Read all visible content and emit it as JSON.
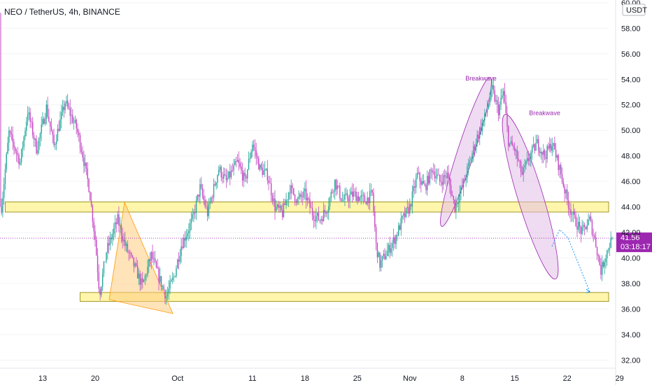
{
  "header": {
    "title": "NEO / TetherUS, 4h, BINANCE"
  },
  "chart_data": {
    "type": "candlestick",
    "title": "NEO / TetherUS, 4h, BINANCE",
    "yaxis": {
      "unit": "USDT",
      "ylim": [
        31.3,
        60.2
      ],
      "ticks": [
        "60.00",
        "58.00",
        "56.00",
        "54.00",
        "52.00",
        "50.00",
        "48.00",
        "46.00",
        "44.00",
        "42.00",
        "40.00",
        "38.00",
        "36.00",
        "34.00",
        "32.00"
      ]
    },
    "xaxis": {
      "ticks": [
        {
          "label": "13",
          "day": 13
        },
        {
          "label": "20",
          "day": 20
        },
        {
          "label": "Oct",
          "day": 31
        },
        {
          "label": "11",
          "day": 41
        },
        {
          "label": "18",
          "day": 48
        },
        {
          "label": "25",
          "day": 55
        },
        {
          "label": "Nov",
          "day": 62
        },
        {
          "label": "8",
          "day": 69
        },
        {
          "label": "15",
          "day": 76
        },
        {
          "label": "22",
          "day": 83
        },
        {
          "label": "29",
          "day": 90
        }
      ]
    },
    "current_price": {
      "value": 41.56,
      "label": "41.56",
      "countdown": "03:18:17"
    },
    "support_zones": [
      {
        "low": 43.6,
        "high": 44.4,
        "start_day": 8,
        "end_day": 91
      },
      {
        "low": 36.6,
        "high": 37.3,
        "start_day": 18,
        "end_day": 91
      }
    ],
    "path_points": [
      {
        "day": 7.5,
        "price": 44.0
      },
      {
        "day": 8.5,
        "price": 49.8
      },
      {
        "day": 10.0,
        "price": 47.5
      },
      {
        "day": 11.0,
        "price": 51.5
      },
      {
        "day": 12.2,
        "price": 48.5
      },
      {
        "day": 13.5,
        "price": 51.8
      },
      {
        "day": 14.5,
        "price": 48.8
      },
      {
        "day": 16.0,
        "price": 52.2
      },
      {
        "day": 17.5,
        "price": 50.2
      },
      {
        "day": 18.2,
        "price": 48.5
      },
      {
        "day": 19.2,
        "price": 45.5
      },
      {
        "day": 20.0,
        "price": 41.5
      },
      {
        "day": 20.6,
        "price": 37.2
      },
      {
        "day": 21.5,
        "price": 40.5
      },
      {
        "day": 23.0,
        "price": 43.0
      },
      {
        "day": 24.0,
        "price": 41.0
      },
      {
        "day": 25.5,
        "price": 39.0
      },
      {
        "day": 26.3,
        "price": 37.8
      },
      {
        "day": 27.5,
        "price": 40.2
      },
      {
        "day": 28.5,
        "price": 38.5
      },
      {
        "day": 29.5,
        "price": 37.0
      },
      {
        "day": 30.5,
        "price": 38.5
      },
      {
        "day": 31.5,
        "price": 41.0
      },
      {
        "day": 33.0,
        "price": 43.0
      },
      {
        "day": 34.0,
        "price": 45.5
      },
      {
        "day": 35.0,
        "price": 43.5
      },
      {
        "day": 36.5,
        "price": 47.0
      },
      {
        "day": 37.5,
        "price": 46.0
      },
      {
        "day": 39.0,
        "price": 47.5
      },
      {
        "day": 40.0,
        "price": 46.0
      },
      {
        "day": 41.0,
        "price": 49.0
      },
      {
        "day": 42.0,
        "price": 47.0
      },
      {
        "day": 43.0,
        "price": 46.5
      },
      {
        "day": 44.0,
        "price": 44.0
      },
      {
        "day": 45.0,
        "price": 43.5
      },
      {
        "day": 46.0,
        "price": 45.5
      },
      {
        "day": 47.0,
        "price": 44.5
      },
      {
        "day": 48.0,
        "price": 45.0
      },
      {
        "day": 49.0,
        "price": 43.5
      },
      {
        "day": 50.0,
        "price": 43.0
      },
      {
        "day": 51.0,
        "price": 44.0
      },
      {
        "day": 52.0,
        "price": 46.0
      },
      {
        "day": 53.0,
        "price": 44.5
      },
      {
        "day": 54.5,
        "price": 45.0
      },
      {
        "day": 56.0,
        "price": 44.5
      },
      {
        "day": 57.0,
        "price": 45.0
      },
      {
        "day": 57.5,
        "price": 41.0
      },
      {
        "day": 58.0,
        "price": 39.5
      },
      {
        "day": 59.0,
        "price": 40.5
      },
      {
        "day": 60.0,
        "price": 41.5
      },
      {
        "day": 61.0,
        "price": 43.0
      },
      {
        "day": 62.0,
        "price": 44.0
      },
      {
        "day": 63.0,
        "price": 46.5
      },
      {
        "day": 64.0,
        "price": 45.5
      },
      {
        "day": 65.0,
        "price": 47.0
      },
      {
        "day": 66.0,
        "price": 46.0
      },
      {
        "day": 67.0,
        "price": 46.5
      },
      {
        "day": 68.0,
        "price": 44.0
      },
      {
        "day": 69.0,
        "price": 45.5
      },
      {
        "day": 70.0,
        "price": 47.5
      },
      {
        "day": 71.0,
        "price": 49.5
      },
      {
        "day": 72.0,
        "price": 51.0
      },
      {
        "day": 73.0,
        "price": 53.2
      },
      {
        "day": 73.8,
        "price": 51.5
      },
      {
        "day": 74.5,
        "price": 53.0
      },
      {
        "day": 75.2,
        "price": 49.0
      },
      {
        "day": 76.0,
        "price": 48.5
      },
      {
        "day": 77.0,
        "price": 46.5
      },
      {
        "day": 78.0,
        "price": 48.0
      },
      {
        "day": 79.0,
        "price": 49.0
      },
      {
        "day": 80.0,
        "price": 48.0
      },
      {
        "day": 81.0,
        "price": 49.0
      },
      {
        "day": 82.0,
        "price": 47.0
      },
      {
        "day": 83.0,
        "price": 44.5
      },
      {
        "day": 84.0,
        "price": 43.0
      },
      {
        "day": 85.0,
        "price": 42.0
      },
      {
        "day": 86.0,
        "price": 43.0
      },
      {
        "day": 86.8,
        "price": 41.2
      },
      {
        "day": 87.5,
        "price": 39.0
      },
      {
        "day": 88.3,
        "price": 40.5
      },
      {
        "day": 89.0,
        "price": 41.56
      }
    ],
    "annotations": [
      {
        "text": "Breakwave",
        "day": 71.5,
        "price": 53.9,
        "color": "#9c27b0"
      },
      {
        "text": "Breakwave",
        "day": 80.0,
        "price": 51.2,
        "color": "#9c27b0"
      }
    ],
    "colors": {
      "up": "#26a69a",
      "down": "#c548c5",
      "zone_fill": "#fff59d",
      "zone_border": "#8a7d00",
      "triangle_fill": "#ffcc80",
      "ellipse_fill": "#e1bee7",
      "ellipse_stroke": "#9c27b0",
      "price_tag": "#9c27b0",
      "projection": "#2196f3"
    }
  }
}
